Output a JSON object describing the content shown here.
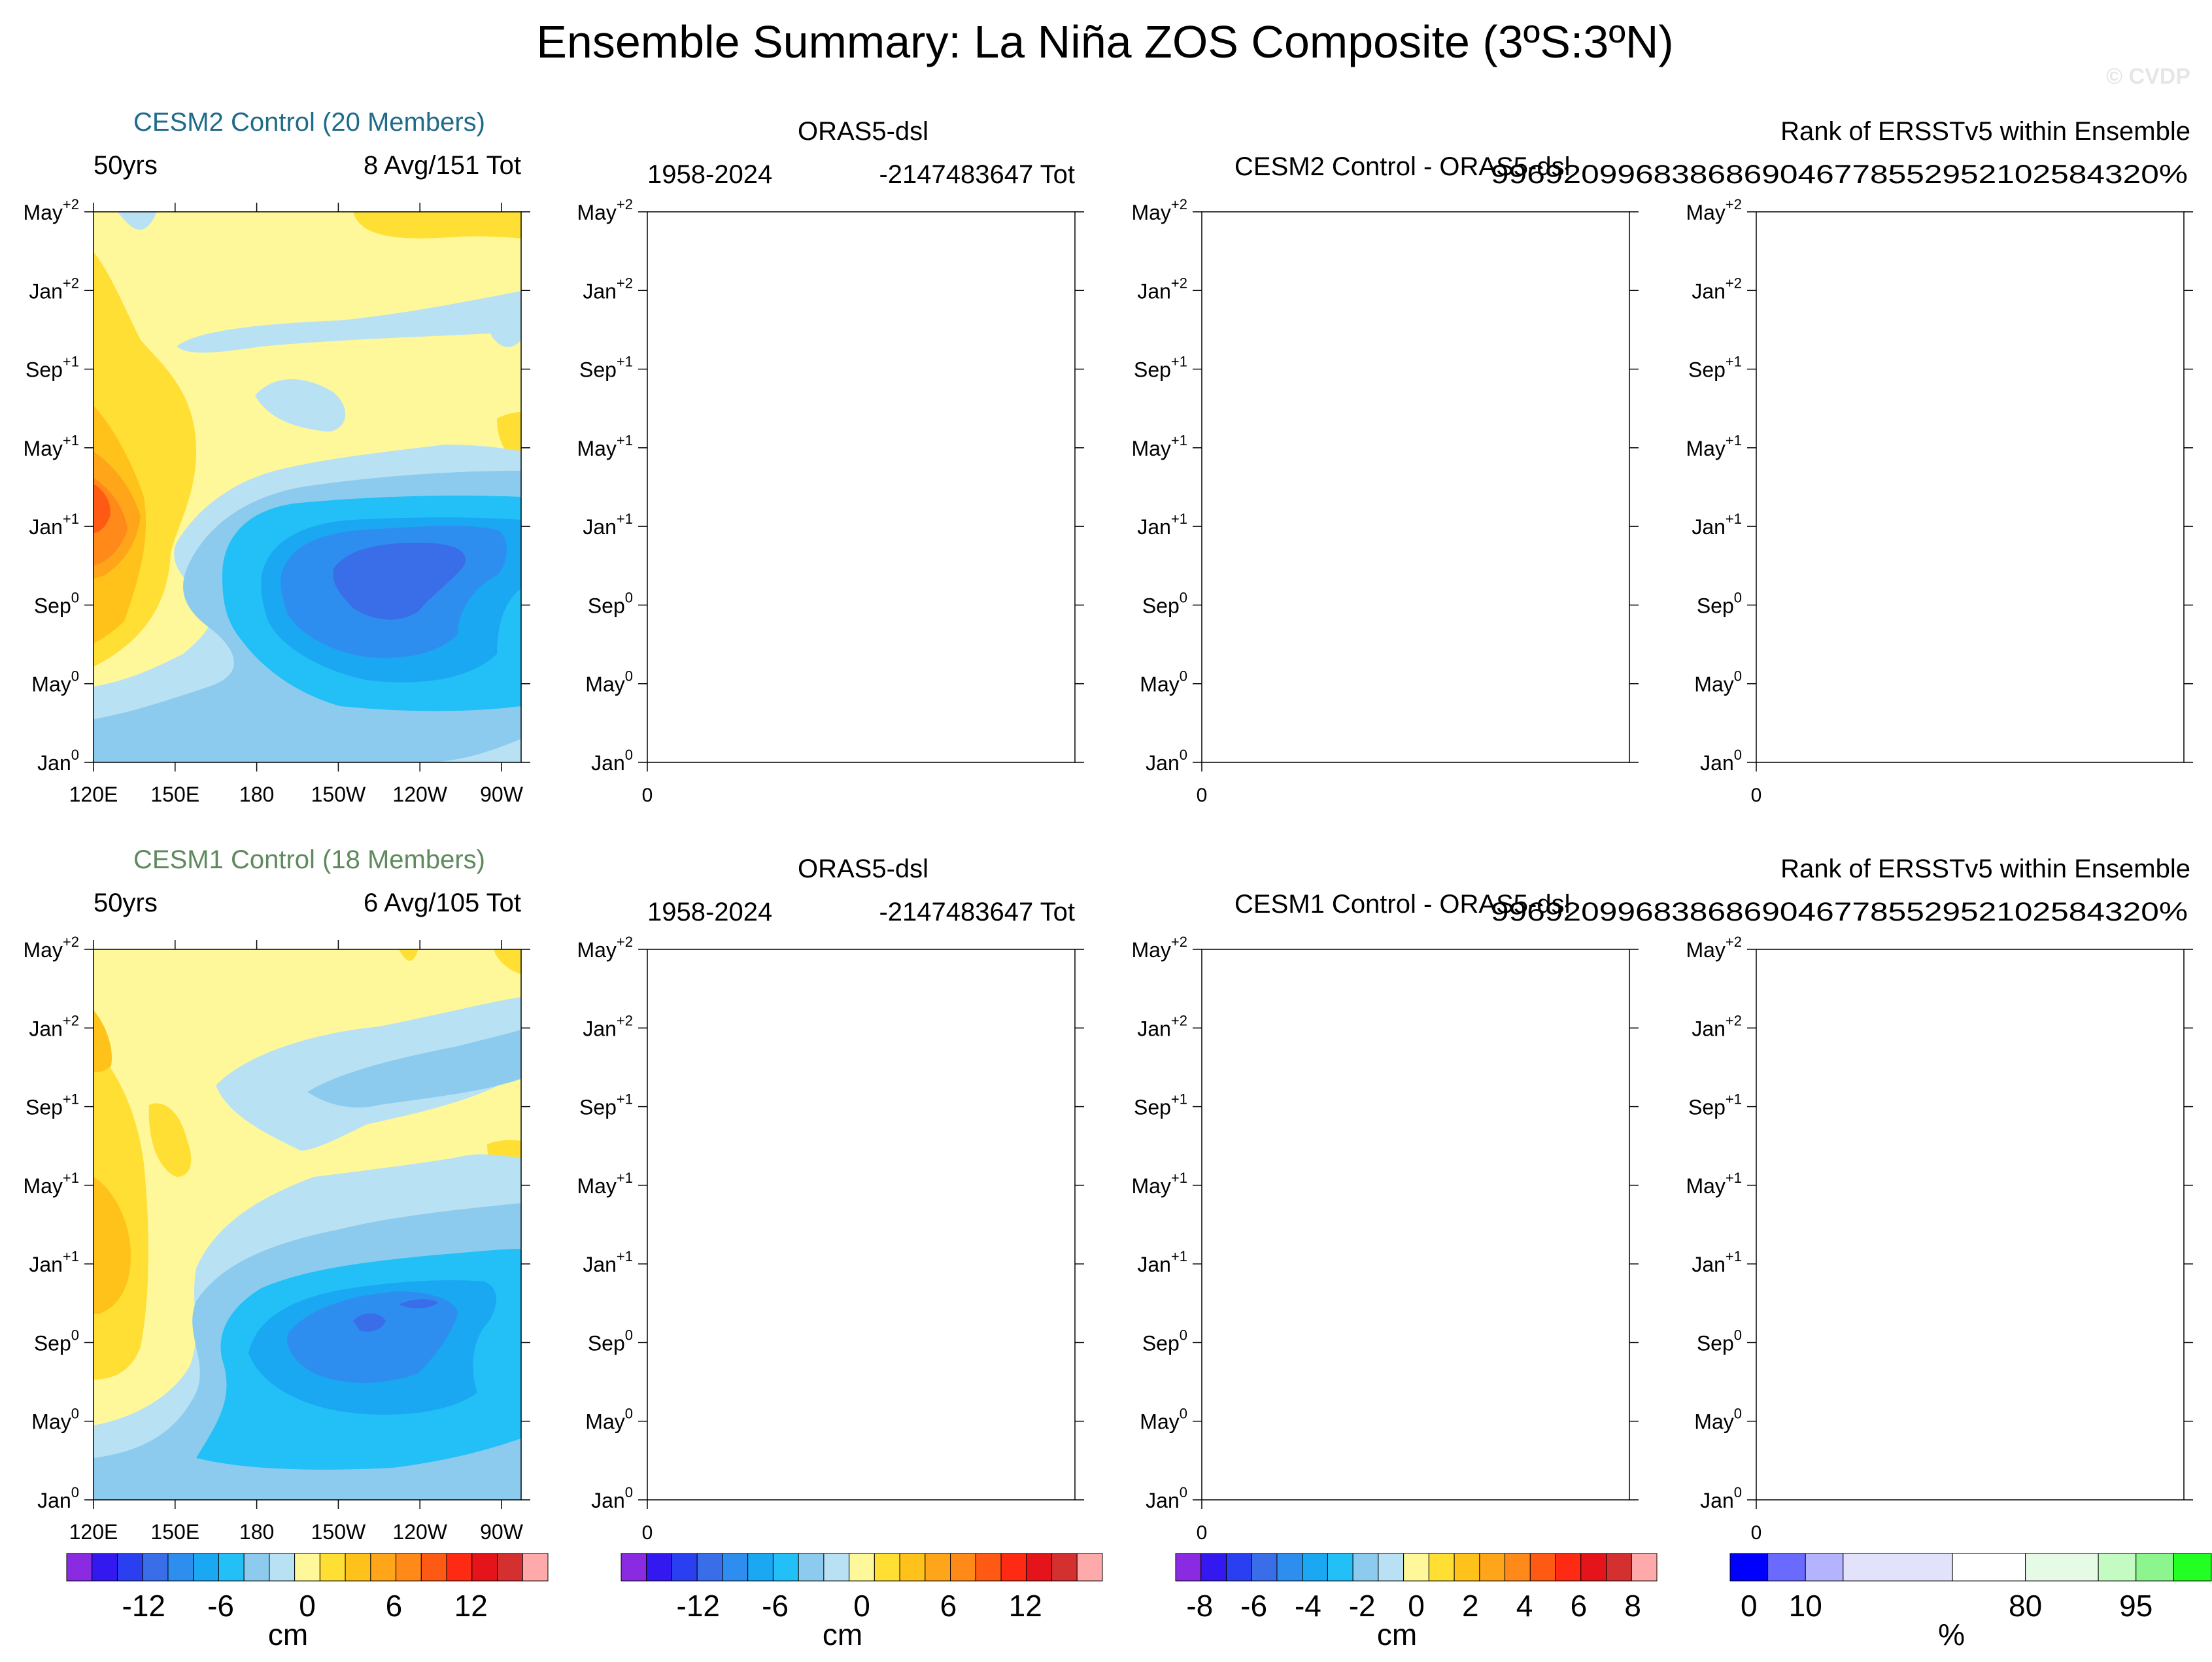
{
  "figure": {
    "title": "Ensemble Summary: La Niña ZOS Composite (3ºS:3ºN)",
    "watermark": "© CVDP"
  },
  "colors": {
    "zos_palette": [
      "#8a2be2",
      "#3319f0",
      "#2a3ff0",
      "#3a6ee8",
      "#2e8ef0",
      "#1aa8f2",
      "#22c0f6",
      "#8ccbee",
      "#b9e1f4",
      "#fff89a",
      "#ffdf33",
      "#ffc21a",
      "#ffa51a",
      "#ff8a1a",
      "#ff5a14",
      "#ff2a14",
      "#e4141a",
      "#d43030",
      "#ffaaaa"
    ],
    "rank_palette": [
      "#0000ff",
      "#6a6aff",
      "#b3b3ff",
      "#e2e2fb",
      "#ffffff",
      "#e6fbe6",
      "#c3fbc3",
      "#8df58d",
      "#22ff22"
    ]
  },
  "axes_common": {
    "y_ticks": [
      {
        "base": "Jan",
        "exp": "0"
      },
      {
        "base": "May",
        "exp": "0"
      },
      {
        "base": "Sep",
        "exp": "0"
      },
      {
        "base": "Jan",
        "exp": "+1"
      },
      {
        "base": "May",
        "exp": "+1"
      },
      {
        "base": "Sep",
        "exp": "+1"
      },
      {
        "base": "Jan",
        "exp": "+2"
      },
      {
        "base": "May",
        "exp": "+2"
      }
    ],
    "x_ticks_lon": [
      "120E",
      "150E",
      "180",
      "150W",
      "120W",
      "90W"
    ],
    "x_ticks_empty": [
      "0"
    ]
  },
  "rows": [
    {
      "panels": [
        {
          "kind": "contour",
          "label": "CESM2 Control (20 Members)",
          "label_color": "#1f6b8a",
          "left": "50yrs",
          "right": "8 Avg/151 Tot"
        },
        {
          "kind": "empty",
          "center": "ORAS5-dsl",
          "left": "1958-2024",
          "right": "-2147483647 Tot"
        },
        {
          "kind": "empty",
          "center": "CESM2 Control - ORAS5-dsl"
        },
        {
          "kind": "empty",
          "center": "Rank of ERSSTv5 within Ensemble",
          "right": "9969209968386869046778552952102584320%"
        }
      ]
    },
    {
      "panels": [
        {
          "kind": "contour",
          "label": "CESM1 Control (18 Members)",
          "label_color": "#5e8a5e",
          "left": "50yrs",
          "right": "6 Avg/105 Tot"
        },
        {
          "kind": "empty",
          "center": "ORAS5-dsl",
          "left": "1958-2024",
          "right": "-2147483647 Tot"
        },
        {
          "kind": "empty",
          "center": "CESM1 Control - ORAS5-dsl"
        },
        {
          "kind": "empty",
          "center": "Rank of ERSSTv5 within Ensemble",
          "right": "9969209968386869046778552952102584320%"
        }
      ]
    }
  ],
  "colorbars": [
    {
      "palette": "zos",
      "labels": [
        "-12",
        "-6",
        "0",
        "6",
        "12"
      ],
      "unit": "cm"
    },
    {
      "palette": "zos",
      "labels": [
        "-12",
        "-6",
        "0",
        "6",
        "12"
      ],
      "unit": "cm"
    },
    {
      "palette": "zos",
      "labels": [
        "-8",
        "-6",
        "-4",
        "-2",
        "0",
        "2",
        "4",
        "6",
        "8"
      ],
      "unit": "cm"
    },
    {
      "palette": "rank",
      "labels": [
        "0",
        "10",
        "80",
        "95"
      ],
      "unit": "%"
    }
  ],
  "chart_data": [
    {
      "type": "heatmap",
      "name": "CESM2 Control (20 Members)",
      "units": "cm",
      "x_ticks": [
        "120E",
        "150E",
        "180",
        "150W",
        "120W",
        "90W"
      ],
      "y_ticks": [
        "Jan⁰",
        "May⁰",
        "Sep⁰",
        "Jan⁺¹",
        "May⁺¹",
        "Sep⁺¹",
        "Jan⁺²",
        "May⁺²"
      ],
      "contour_levels": [
        -16,
        -14,
        -12,
        -10,
        -8,
        -6,
        -4,
        -2,
        0,
        2,
        4,
        6,
        8,
        10,
        12,
        14,
        16,
        18
      ],
      "field_approx": "La Niña composite: negative anomaly core about -14 cm near 130W around Oct⁰–Dec⁰; positive anomalies 6–10 cm near 120E–130E around Jan⁺¹; near 0 to +2 cm elsewhere in year +1 to +2"
    },
    {
      "type": "heatmap",
      "name": "CESM1 Control (18 Members)",
      "units": "cm",
      "x_ticks": [
        "120E",
        "150E",
        "180",
        "150W",
        "120W",
        "90W"
      ],
      "y_ticks": [
        "Jan⁰",
        "May⁰",
        "Sep⁰",
        "Jan⁺¹",
        "May⁺¹",
        "Sep⁺¹",
        "Jan⁺²",
        "May⁺²"
      ],
      "contour_levels": [
        -16,
        -14,
        -12,
        -10,
        -8,
        -6,
        -4,
        -2,
        0,
        2,
        4,
        6,
        8,
        10,
        12,
        14,
        16,
        18
      ],
      "field_approx": "La Niña composite: negative anomaly core about -12 cm near 150W–130W around Sep⁰–Nov⁰; positive anomalies 4–6 cm near 120E–130E around Jan⁺¹; weak negative anomalies in Sep⁺¹–Jan⁺²"
    }
  ]
}
